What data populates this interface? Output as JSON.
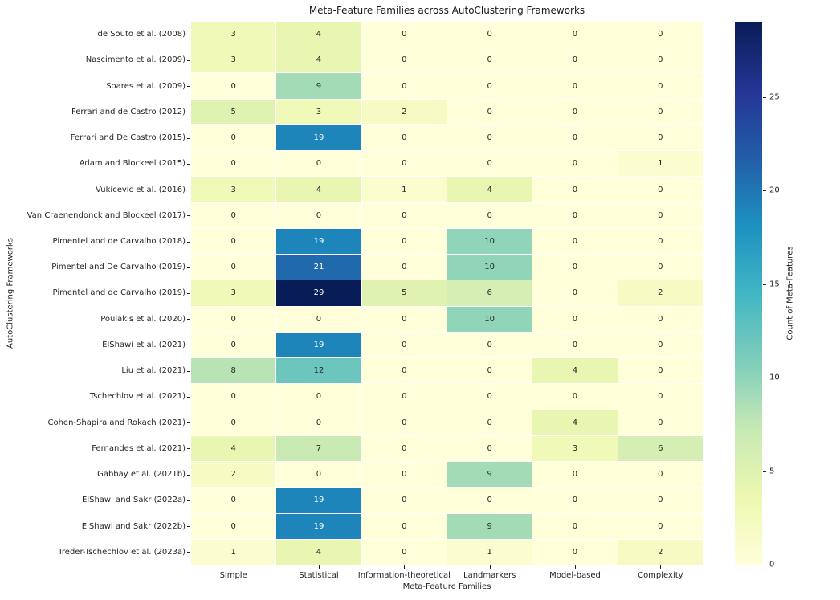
{
  "title": "Meta-Feature Families across AutoClustering Frameworks",
  "chart_data": {
    "type": "heatmap",
    "title": "Meta-Feature Families across AutoClustering Frameworks",
    "xlabel": "Meta-Feature Families",
    "ylabel": "AutoClustering Frameworks",
    "columns": [
      "Simple",
      "Statistical",
      "Information-theoretical",
      "Landmarkers",
      "Model-based",
      "Complexity"
    ],
    "rows": [
      "de Souto et al. (2008)",
      "Nascimento et al. (2009)",
      "Soares et al. (2009)",
      "Ferrari and de Castro (2012)",
      "Ferrari and De Castro (2015)",
      "Adam and Blockeel (2015)",
      "Vukicevic et al. (2016)",
      "Van Craenendonck and Blockeel (2017)",
      "Pimentel and de Carvalho (2018)",
      "Pimentel and De Carvalho (2019)",
      "Pimentel and de Carvalho (2019)",
      "Poulakis et al. (2020)",
      "ElShawi et al. (2021)",
      "Liu et al. (2021)",
      "Tschechlov et al. (2021)",
      "Cohen-Shapira and Rokach (2021)",
      "Fernandes et al. (2021)",
      "Gabbay et al. (2021b)",
      "ElShawi and Sakr (2022a)",
      "ElShawi and Sakr (2022b)",
      "Treder-Tschechlov et al. (2023a)"
    ],
    "values": [
      [
        3,
        4,
        0,
        0,
        0,
        0
      ],
      [
        3,
        4,
        0,
        0,
        0,
        0
      ],
      [
        0,
        9,
        0,
        0,
        0,
        0
      ],
      [
        5,
        3,
        2,
        0,
        0,
        0
      ],
      [
        0,
        19,
        0,
        0,
        0,
        0
      ],
      [
        0,
        0,
        0,
        0,
        0,
        1
      ],
      [
        3,
        4,
        1,
        4,
        0,
        0
      ],
      [
        0,
        0,
        0,
        0,
        0,
        0
      ],
      [
        0,
        19,
        0,
        10,
        0,
        0
      ],
      [
        0,
        21,
        0,
        10,
        0,
        0
      ],
      [
        3,
        29,
        5,
        6,
        0,
        2
      ],
      [
        0,
        0,
        0,
        10,
        0,
        0
      ],
      [
        0,
        19,
        0,
        0,
        0,
        0
      ],
      [
        8,
        12,
        0,
        0,
        4,
        0
      ],
      [
        0,
        0,
        0,
        0,
        0,
        0
      ],
      [
        0,
        0,
        0,
        0,
        4,
        0
      ],
      [
        4,
        7,
        0,
        0,
        3,
        6
      ],
      [
        2,
        0,
        0,
        9,
        0,
        0
      ],
      [
        0,
        19,
        0,
        0,
        0,
        0
      ],
      [
        0,
        19,
        0,
        9,
        0,
        0
      ],
      [
        1,
        4,
        0,
        1,
        0,
        2
      ]
    ],
    "vmin": 0,
    "vmax": 29,
    "grid": false,
    "annotated": true,
    "colorbar": {
      "label": "Count of Meta-Features",
      "ticks": [
        0,
        5,
        10,
        15,
        20,
        25
      ],
      "position": "right"
    }
  },
  "colors": {
    "colormap_name": "YlGnBu",
    "colormap_stops": [
      [
        0.0,
        "#ffffd9"
      ],
      [
        0.125,
        "#edf8b1"
      ],
      [
        0.25,
        "#c7e9b4"
      ],
      [
        0.375,
        "#7fcdbb"
      ],
      [
        0.5,
        "#41b6c4"
      ],
      [
        0.625,
        "#1d91c0"
      ],
      [
        0.75,
        "#225ea8"
      ],
      [
        0.875,
        "#253494"
      ],
      [
        1.0,
        "#081d58"
      ]
    ],
    "annotation_dark": "#262626",
    "annotation_light": "#ffffff",
    "background": "#ffffff"
  }
}
